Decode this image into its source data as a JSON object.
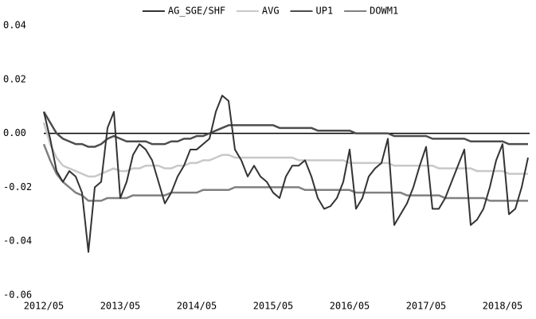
{
  "chart_data": {
    "type": "line",
    "categories": [
      "2012/05",
      null,
      null,
      null,
      null,
      null,
      null,
      null,
      null,
      null,
      null,
      null,
      "2013/05",
      null,
      null,
      null,
      null,
      null,
      null,
      null,
      null,
      null,
      null,
      null,
      "2014/05",
      null,
      null,
      null,
      null,
      null,
      null,
      null,
      null,
      null,
      null,
      null,
      "2015/05",
      null,
      null,
      null,
      null,
      null,
      null,
      null,
      null,
      null,
      null,
      null,
      "2016/05",
      null,
      null,
      null,
      null,
      null,
      null,
      null,
      null,
      null,
      null,
      null,
      "2017/05",
      null,
      null,
      null,
      null,
      null,
      null,
      null,
      null,
      null,
      null,
      null,
      "2018/05",
      null,
      null,
      null,
      null
    ],
    "series": [
      {
        "name": "AG_SGE/SHF",
        "color": "#333333",
        "values": [
          0.008,
          -0.002,
          -0.014,
          -0.018,
          -0.014,
          -0.016,
          -0.022,
          -0.044,
          -0.02,
          -0.018,
          0.002,
          0.008,
          -0.024,
          -0.018,
          -0.008,
          -0.004,
          -0.006,
          -0.01,
          -0.018,
          -0.026,
          -0.022,
          -0.016,
          -0.012,
          -0.006,
          -0.006,
          -0.004,
          -0.002,
          0.008,
          0.014,
          0.012,
          -0.006,
          -0.01,
          -0.016,
          -0.012,
          -0.016,
          -0.018,
          -0.022,
          -0.024,
          -0.016,
          -0.012,
          -0.012,
          -0.01,
          -0.016,
          -0.024,
          -0.028,
          -0.027,
          -0.024,
          -0.018,
          -0.006,
          -0.028,
          -0.024,
          -0.016,
          -0.013,
          -0.011,
          -0.002,
          -0.034,
          -0.03,
          -0.026,
          -0.02,
          -0.012,
          -0.005,
          -0.028,
          -0.028,
          -0.024,
          -0.018,
          -0.012,
          -0.006,
          -0.034,
          -0.032,
          -0.028,
          -0.02,
          -0.01,
          -0.004,
          -0.03,
          -0.028,
          -0.02,
          -0.009
        ]
      },
      {
        "name": "AVG",
        "color": "#c8c8c8",
        "values": [
          0.004,
          -0.004,
          -0.009,
          -0.012,
          -0.013,
          -0.014,
          -0.015,
          -0.016,
          -0.016,
          -0.015,
          -0.014,
          -0.013,
          -0.014,
          -0.014,
          -0.013,
          -0.013,
          -0.012,
          -0.012,
          -0.012,
          -0.013,
          -0.013,
          -0.012,
          -0.012,
          -0.011,
          -0.011,
          -0.01,
          -0.01,
          -0.009,
          -0.008,
          -0.008,
          -0.009,
          -0.009,
          -0.009,
          -0.009,
          -0.009,
          -0.009,
          -0.009,
          -0.009,
          -0.009,
          -0.009,
          -0.01,
          -0.01,
          -0.01,
          -0.01,
          -0.01,
          -0.01,
          -0.01,
          -0.01,
          -0.011,
          -0.011,
          -0.011,
          -0.011,
          -0.011,
          -0.011,
          -0.011,
          -0.012,
          -0.012,
          -0.012,
          -0.012,
          -0.012,
          -0.012,
          -0.012,
          -0.013,
          -0.013,
          -0.013,
          -0.013,
          -0.013,
          -0.013,
          -0.014,
          -0.014,
          -0.014,
          -0.014,
          -0.014,
          -0.015,
          -0.015,
          -0.015,
          -0.015
        ]
      },
      {
        "name": "UP1",
        "color": "#4d4d4d",
        "values": [
          0.008,
          0.004,
          0,
          -0.002,
          -0.003,
          -0.004,
          -0.004,
          -0.005,
          -0.005,
          -0.004,
          -0.002,
          -0.001,
          -0.002,
          -0.003,
          -0.003,
          -0.003,
          -0.003,
          -0.004,
          -0.004,
          -0.004,
          -0.003,
          -0.003,
          -0.002,
          -0.002,
          -0.001,
          -0.001,
          0,
          0.001,
          0.002,
          0.003,
          0.003,
          0.003,
          0.003,
          0.003,
          0.003,
          0.003,
          0.003,
          0.002,
          0.002,
          0.002,
          0.002,
          0.002,
          0.002,
          0.001,
          0.001,
          0.001,
          0.001,
          0.001,
          0.001,
          0,
          0,
          0,
          0,
          0,
          0,
          -0.001,
          -0.001,
          -0.001,
          -0.001,
          -0.001,
          -0.001,
          -0.002,
          -0.002,
          -0.002,
          -0.002,
          -0.002,
          -0.002,
          -0.003,
          -0.003,
          -0.003,
          -0.003,
          -0.003,
          -0.003,
          -0.004,
          -0.004,
          -0.004,
          -0.004
        ]
      },
      {
        "name": "DOWM1",
        "color": "#808080",
        "values": [
          -0.004,
          -0.01,
          -0.015,
          -0.018,
          -0.02,
          -0.022,
          -0.023,
          -0.025,
          -0.025,
          -0.025,
          -0.024,
          -0.024,
          -0.024,
          -0.024,
          -0.023,
          -0.023,
          -0.023,
          -0.023,
          -0.023,
          -0.023,
          -0.022,
          -0.022,
          -0.022,
          -0.022,
          -0.022,
          -0.021,
          -0.021,
          -0.021,
          -0.021,
          -0.021,
          -0.02,
          -0.02,
          -0.02,
          -0.02,
          -0.02,
          -0.02,
          -0.02,
          -0.02,
          -0.02,
          -0.02,
          -0.02,
          -0.021,
          -0.021,
          -0.021,
          -0.021,
          -0.021,
          -0.021,
          -0.021,
          -0.021,
          -0.022,
          -0.022,
          -0.022,
          -0.022,
          -0.022,
          -0.022,
          -0.022,
          -0.022,
          -0.023,
          -0.023,
          -0.023,
          -0.023,
          -0.023,
          -0.023,
          -0.024,
          -0.024,
          -0.024,
          -0.024,
          -0.024,
          -0.024,
          -0.024,
          -0.025,
          -0.025,
          -0.025,
          -0.025,
          -0.025,
          -0.025,
          -0.025
        ]
      }
    ],
    "ylim": [
      -0.06,
      0.04
    ],
    "yticks": [
      0.04,
      0.02,
      {
        "value": 0,
        "label": "0.00"
      },
      -0.02,
      -0.04,
      -0.06
    ],
    "zero_line": true,
    "legend": "top"
  }
}
